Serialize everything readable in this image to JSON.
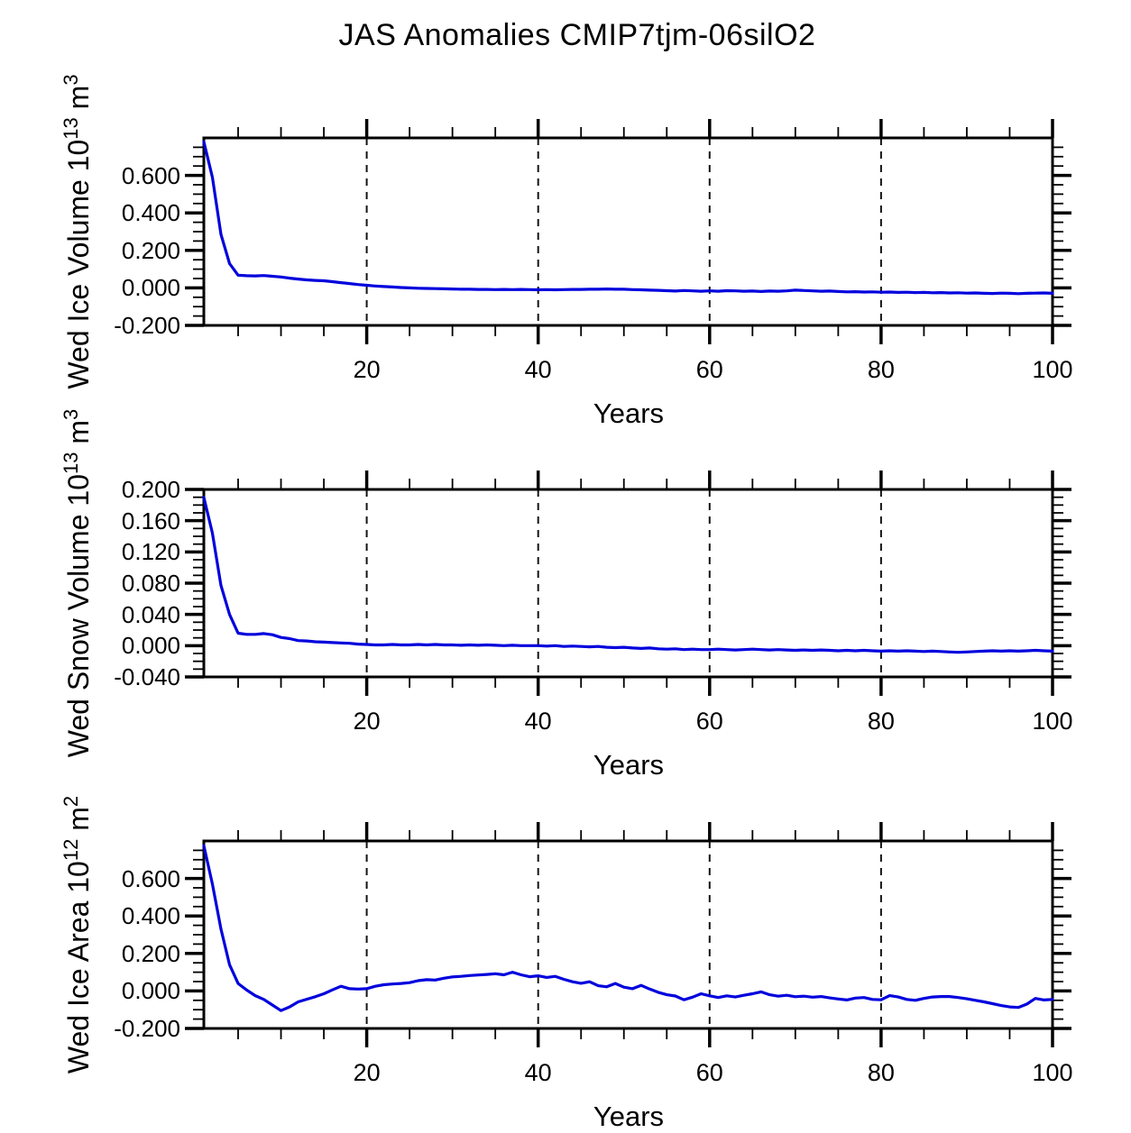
{
  "page": {
    "title": "JAS Anomalies CMIP7tjm-06silO2"
  },
  "style": {
    "line_color": "#0000dd",
    "axis_color": "#000000",
    "grid_color": "#141414"
  },
  "chart_data": [
    {
      "type": "line",
      "panel": "wed-ice-volume",
      "ylabel": {
        "base": "Wed Ice Volume 10",
        "exp": "13",
        "unit": " m",
        "unit_exp": "3",
        "plain": "Wed Ice Volume 10^13 m^3"
      },
      "xlabel": "Years",
      "xlim": [
        1,
        100
      ],
      "ylim": [
        -0.2,
        0.8
      ],
      "xticks_major": [
        20,
        40,
        60,
        80,
        100
      ],
      "xtick_labels": [
        "20",
        "40",
        "60",
        "80",
        "100"
      ],
      "xminor_step": 5,
      "yticks_major": [
        0.6,
        0.4,
        0.2,
        0.0,
        -0.2
      ],
      "ytick_labels": [
        "0.600",
        "0.400",
        "0.200",
        "0.000",
        "-0.200"
      ],
      "yminor_step": 0.05,
      "grid_x": [
        20,
        40,
        60,
        80
      ],
      "grid": "vertical-dashed",
      "legend": "none",
      "x_start": 1,
      "values": [
        0.78,
        0.59,
        0.285,
        0.13,
        0.068,
        0.065,
        0.064,
        0.066,
        0.062,
        0.058,
        0.052,
        0.047,
        0.043,
        0.04,
        0.038,
        0.033,
        0.028,
        0.023,
        0.018,
        0.014,
        0.01,
        0.007,
        0.005,
        0.002,
        0,
        -0.002,
        -0.003,
        -0.004,
        -0.005,
        -0.006,
        -0.007,
        -0.007,
        -0.008,
        -0.008,
        -0.009,
        -0.008,
        -0.009,
        -0.008,
        -0.009,
        -0.01,
        -0.009,
        -0.01,
        -0.009,
        -0.008,
        -0.008,
        -0.007,
        -0.007,
        -0.006,
        -0.007,
        -0.007,
        -0.009,
        -0.01,
        -0.012,
        -0.013,
        -0.015,
        -0.017,
        -0.014,
        -0.016,
        -0.018,
        -0.016,
        -0.018,
        -0.015,
        -0.016,
        -0.018,
        -0.017,
        -0.019,
        -0.017,
        -0.018,
        -0.016,
        -0.012,
        -0.014,
        -0.016,
        -0.018,
        -0.017,
        -0.019,
        -0.021,
        -0.02,
        -0.022,
        -0.021,
        -0.023,
        -0.022,
        -0.024,
        -0.023,
        -0.025,
        -0.024,
        -0.026,
        -0.025,
        -0.027,
        -0.026,
        -0.028,
        -0.027,
        -0.029,
        -0.03,
        -0.028,
        -0.029,
        -0.031,
        -0.029,
        -0.028,
        -0.027,
        -0.029
      ]
    },
    {
      "type": "line",
      "panel": "wed-snow-volume",
      "ylabel": {
        "base": "Wed Snow Volume 10",
        "exp": "13",
        "unit": " m",
        "unit_exp": "3",
        "plain": "Wed Snow Volume 10^13 m^3"
      },
      "xlabel": "Years",
      "xlim": [
        1,
        100
      ],
      "ylim": [
        -0.04,
        0.2
      ],
      "xticks_major": [
        20,
        40,
        60,
        80,
        100
      ],
      "xtick_labels": [
        "20",
        "40",
        "60",
        "80",
        "100"
      ],
      "xminor_step": 5,
      "yticks_major": [
        0.2,
        0.16,
        0.12,
        0.08,
        0.04,
        0.0,
        -0.04
      ],
      "ytick_labels": [
        "0.200",
        "0.160",
        "0.120",
        "0.080",
        "0.040",
        "0.000",
        "-0.040"
      ],
      "yminor_step": 0.01,
      "grid_x": [
        20,
        40,
        60,
        80
      ],
      "grid": "vertical-dashed",
      "legend": "none",
      "x_start": 1,
      "values": [
        0.19,
        0.144,
        0.077,
        0.04,
        0.016,
        0.0145,
        0.0145,
        0.0155,
        0.014,
        0.0105,
        0.009,
        0.0065,
        0.006,
        0.005,
        0.0045,
        0.004,
        0.0035,
        0.003,
        0.002,
        0.0015,
        0.001,
        0.001,
        0.0015,
        0.001,
        0.001,
        0.0015,
        0.001,
        0.0015,
        0.001,
        0.001,
        0.0005,
        0.001,
        0.0005,
        0.001,
        0.0005,
        0,
        0.0005,
        0,
        0,
        0,
        -0.0005,
        0,
        -0.001,
        -0.0005,
        -0.001,
        -0.0015,
        -0.001,
        -0.002,
        -0.0025,
        -0.002,
        -0.003,
        -0.0035,
        -0.003,
        -0.004,
        -0.0045,
        -0.004,
        -0.005,
        -0.0045,
        -0.005,
        -0.005,
        -0.0045,
        -0.005,
        -0.0055,
        -0.005,
        -0.0045,
        -0.005,
        -0.0055,
        -0.005,
        -0.0055,
        -0.006,
        -0.0055,
        -0.006,
        -0.0055,
        -0.006,
        -0.0065,
        -0.006,
        -0.0065,
        -0.006,
        -0.0065,
        -0.007,
        -0.0065,
        -0.007,
        -0.0065,
        -0.007,
        -0.0075,
        -0.007,
        -0.0075,
        -0.008,
        -0.0085,
        -0.008,
        -0.0075,
        -0.007,
        -0.0065,
        -0.007,
        -0.0065,
        -0.007,
        -0.0065,
        -0.006,
        -0.0065,
        -0.007
      ]
    },
    {
      "type": "line",
      "panel": "wed-ice-area",
      "ylabel": {
        "base": "Wed Ice Area 10",
        "exp": "12",
        "unit": " m",
        "unit_exp": "2",
        "plain": "Wed Ice Area 10^12 m^2"
      },
      "xlabel": "Years",
      "xlim": [
        1,
        100
      ],
      "ylim": [
        -0.2,
        0.8
      ],
      "xticks_major": [
        20,
        40,
        60,
        80,
        100
      ],
      "xtick_labels": [
        "20",
        "40",
        "60",
        "80",
        "100"
      ],
      "xminor_step": 5,
      "yticks_major": [
        0.6,
        0.4,
        0.2,
        0.0,
        -0.2
      ],
      "ytick_labels": [
        "0.600",
        "0.400",
        "0.200",
        "0.000",
        "-0.200"
      ],
      "yminor_step": 0.05,
      "grid_x": [
        20,
        40,
        60,
        80
      ],
      "grid": "vertical-dashed",
      "legend": "none",
      "x_start": 1,
      "values": [
        0.775,
        0.57,
        0.33,
        0.14,
        0.04,
        0.005,
        -0.025,
        -0.045,
        -0.075,
        -0.105,
        -0.085,
        -0.058,
        -0.044,
        -0.031,
        -0.015,
        0.006,
        0.025,
        0.012,
        0.01,
        0.012,
        0.025,
        0.033,
        0.037,
        0.04,
        0.044,
        0.055,
        0.06,
        0.058,
        0.068,
        0.075,
        0.078,
        0.082,
        0.085,
        0.088,
        0.092,
        0.086,
        0.1,
        0.086,
        0.076,
        0.081,
        0.072,
        0.078,
        0.062,
        0.049,
        0.041,
        0.049,
        0.028,
        0.022,
        0.04,
        0.02,
        0.012,
        0.03,
        0.01,
        -0.007,
        -0.02,
        -0.027,
        -0.047,
        -0.033,
        -0.015,
        -0.026,
        -0.035,
        -0.026,
        -0.032,
        -0.023,
        -0.015,
        -0.005,
        -0.02,
        -0.028,
        -0.023,
        -0.031,
        -0.028,
        -0.033,
        -0.03,
        -0.037,
        -0.043,
        -0.048,
        -0.038,
        -0.035,
        -0.045,
        -0.047,
        -0.025,
        -0.032,
        -0.045,
        -0.05,
        -0.04,
        -0.032,
        -0.03,
        -0.03,
        -0.035,
        -0.042,
        -0.05,
        -0.058,
        -0.068,
        -0.078,
        -0.085,
        -0.088,
        -0.07,
        -0.04,
        -0.048,
        -0.045
      ]
    }
  ]
}
